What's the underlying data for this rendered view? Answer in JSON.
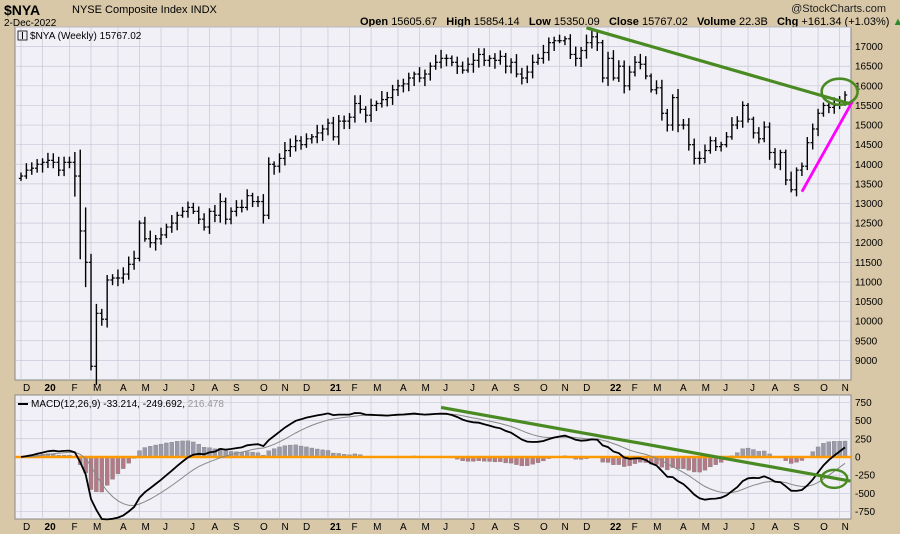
{
  "header": {
    "symbol": "$NYA",
    "name": "NYSE Composite Index  INDX",
    "date": "2-Dec-2022",
    "open_label": "Open",
    "open": "15605.67",
    "high_label": "High",
    "high": "15854.14",
    "low_label": "Low",
    "low": "15350.09",
    "close_label": "Close",
    "close": "15767.02",
    "volume_label": "Volume",
    "volume": "22.3B",
    "chg_label": "Chg",
    "chg": "+161.34 (+1.03%)",
    "credit": "@StockCharts.com"
  },
  "colors": {
    "background": "#d8c8a8",
    "panel": "#f0f0f6",
    "grid": "#c8c8d8",
    "price_bar": "#000000",
    "trendline": "#4a8a22",
    "support": "#ff00ff",
    "zero_line": "#ff9900",
    "hist_pos": "#9a9aaa",
    "hist_neg": "#b27a86",
    "signal": "#888888"
  },
  "chart_data": [
    {
      "type": "ohlc",
      "legend": "$NYA (Weekly) 15767.02",
      "ylim": [
        8500,
        17500
      ],
      "yticks": [
        9000,
        9500,
        10000,
        10500,
        11000,
        11500,
        12000,
        12500,
        13000,
        13500,
        14000,
        14500,
        15000,
        15500,
        16000,
        16500,
        17000,
        17500
      ],
      "x_tick_labels": [
        "D",
        "20",
        "F",
        "M",
        "A",
        "M",
        "J",
        "J",
        "A",
        "S",
        "O",
        "N",
        "D",
        "21",
        "F",
        "M",
        "A",
        "M",
        "J",
        "J",
        "A",
        "S",
        "O",
        "N",
        "D",
        "22",
        "F",
        "M",
        "A",
        "M",
        "J",
        "J",
        "A",
        "S",
        "O",
        "N"
      ],
      "x_tick_weeks": [
        0,
        4,
        9,
        13,
        18,
        22,
        26,
        31,
        35,
        39,
        44,
        48,
        52,
        57,
        61,
        65,
        70,
        74,
        78,
        83,
        87,
        91,
        96,
        100,
        104,
        109,
        113,
        117,
        122,
        126,
        130,
        135,
        139,
        143,
        148,
        152
      ],
      "weekly_close": [
        13700,
        13850,
        13900,
        14000,
        14050,
        14100,
        14050,
        13850,
        14050,
        14050,
        13700,
        12300,
        11500,
        8850,
        10200,
        10050,
        11050,
        11100,
        11100,
        11200,
        11450,
        11600,
        12500,
        12100,
        12000,
        12100,
        12200,
        12400,
        12500,
        12700,
        12800,
        12900,
        12800,
        12600,
        12400,
        12800,
        12700,
        13050,
        12600,
        12800,
        12900,
        12900,
        13200,
        13050,
        13050,
        12700,
        14000,
        13950,
        14150,
        14350,
        14450,
        14600,
        14500,
        14650,
        14700,
        14800,
        14900,
        15050,
        14700,
        15100,
        15100,
        15200,
        15550,
        15400,
        15250,
        15500,
        15550,
        15650,
        15700,
        15900,
        16000,
        16050,
        16200,
        16300,
        16200,
        16300,
        16500,
        16600,
        16700,
        16700,
        16600,
        16500,
        16400,
        16550,
        16650,
        16800,
        16650,
        16700,
        16650,
        16750,
        16500,
        16600,
        16300,
        16200,
        16350,
        16600,
        16700,
        16850,
        17100,
        17150,
        17150,
        17200,
        16800,
        16700,
        16900,
        17100,
        17250,
        17100,
        16200,
        16700,
        16200,
        16500,
        16000,
        16350,
        16600,
        16550,
        16250,
        15900,
        15950,
        15300,
        15000,
        15700,
        15000,
        15000,
        14500,
        14150,
        14150,
        14350,
        14600,
        14450,
        14500,
        14700,
        15000,
        15100,
        15500,
        15150,
        14800,
        14650,
        14950,
        14300,
        14000,
        14300,
        13600,
        13350,
        13850,
        13950,
        14550,
        14900,
        15300,
        15500,
        15450,
        15500,
        15605,
        15767
      ],
      "annotations": [
        "downtrend-line",
        "support-line",
        "breakout-circle"
      ]
    },
    {
      "type": "macd",
      "legend": "MACD(12,26,9)",
      "macd_value": "-33.214",
      "signal_value": "-249.692",
      "hist_value": "216.478",
      "ylim": [
        -850,
        850
      ],
      "yticks": [
        -750,
        -500,
        -250,
        0,
        250,
        500,
        750
      ],
      "x_tick_labels": [
        "D",
        "20",
        "F",
        "M",
        "A",
        "M",
        "J",
        "J",
        "A",
        "S",
        "O",
        "N",
        "D",
        "21",
        "F",
        "M",
        "A",
        "M",
        "J",
        "J",
        "A",
        "S",
        "O",
        "N",
        "D",
        "22",
        "F",
        "M",
        "A",
        "M",
        "J",
        "J",
        "A",
        "S",
        "O",
        "N"
      ],
      "annotations": [
        "macd-trendline",
        "macd-cross-circle"
      ]
    }
  ]
}
